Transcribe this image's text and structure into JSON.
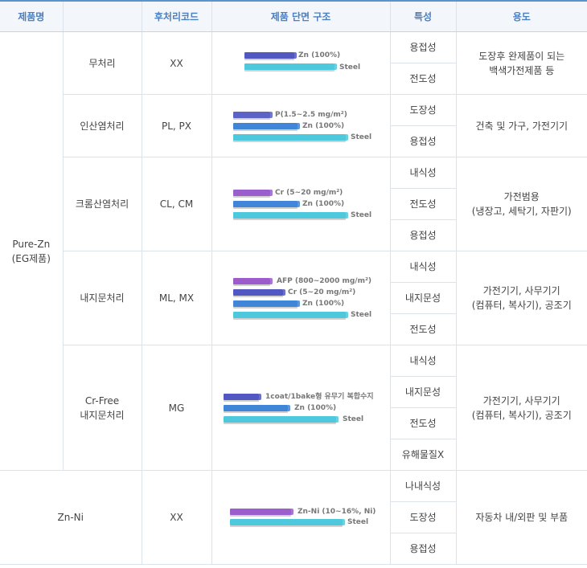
{
  "header": {
    "product_name": "제품명",
    "blank": "",
    "code": "후처리코드",
    "structure": "제품 단면 구조",
    "property": "특성",
    "usage": "용도"
  },
  "colors": {
    "header_text": "#4a7fc0",
    "header_border": "#5b93cf",
    "steel": "#4cc9dd",
    "zn": "#3f86d8",
    "p": "#5d62c6",
    "cr": "#9b5ecd",
    "afp": "#9d5ccc"
  },
  "groups": {
    "pure_zn": {
      "name_line1": "Pure-Zn",
      "name_line2": "(EG제품)"
    },
    "zn_ni": {
      "name": "Zn-Ni"
    }
  },
  "rows": [
    {
      "treatment": "무처리",
      "code": "XX",
      "layers": [
        "Zn (100%)",
        "Steel"
      ],
      "properties": [
        "용접성",
        "전도성"
      ],
      "usage_line1": "도장후 완제품이 되는",
      "usage_line2": "백색가전제품 등"
    },
    {
      "treatment": "인산염처리",
      "code": "PL, PX",
      "layers": [
        "P(1.5~2.5 mg/m²)",
        "Zn (100%)",
        "Steel"
      ],
      "properties": [
        "도장성",
        "용접성"
      ],
      "usage_line1": "건축 및 가구, 가전기기",
      "usage_line2": ""
    },
    {
      "treatment": "크롬산염처리",
      "code": "CL, CM",
      "layers": [
        "Cr (5~20 mg/m²)",
        "Zn (100%)",
        "Steel"
      ],
      "properties": [
        "내식성",
        "전도성",
        "용접성"
      ],
      "usage_line1": "가전범용",
      "usage_line2": "(냉장고, 세탁기, 자판기)"
    },
    {
      "treatment": "내지문처리",
      "code": "ML, MX",
      "layers": [
        "AFP (800~2000 mg/m²)",
        "Cr (5~20 mg/m²)",
        "Zn (100%)",
        "Steel"
      ],
      "properties": [
        "내식성",
        "내지문성",
        "전도성"
      ],
      "usage_line1": "가전기기, 사무기기",
      "usage_line2": "(컴퓨터, 복사기), 공조기"
    },
    {
      "treatment_line1": "Cr-Free",
      "treatment_line2": "내지문처리",
      "code": "MG",
      "layers": [
        "1coat/1bake형 유무기 복합수지",
        "Zn (100%)",
        "Steel"
      ],
      "properties": [
        "내식성",
        "내지문성",
        "전도성",
        "유해물질X"
      ],
      "usage_line1": "가전기기, 사무기기",
      "usage_line2": "(컴퓨터, 복사기), 공조기"
    },
    {
      "code": "XX",
      "layers": [
        "Zn-Ni (10~16%, Ni)",
        "Steel"
      ],
      "properties": [
        "나내식성",
        "도장성",
        "용접성"
      ],
      "usage_line1": "자동차 내/외판 및 부품",
      "usage_line2": ""
    }
  ]
}
